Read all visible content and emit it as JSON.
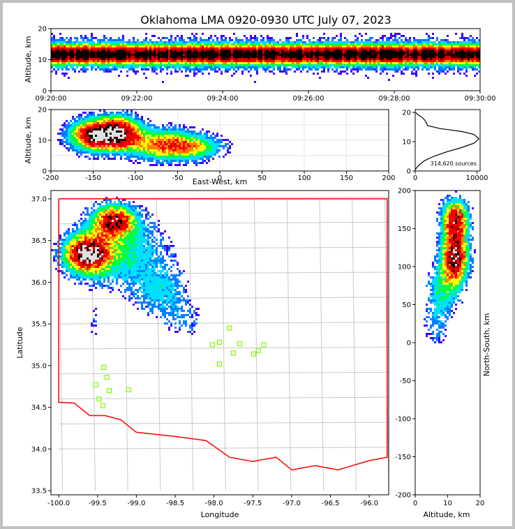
{
  "title": "Oklahoma LMA 0920-0930 UTC July 07, 2023",
  "chart_data": [
    {
      "id": "time-height",
      "type": "heatmap",
      "ylabel": "Altitude, km",
      "ylim": [
        0,
        20
      ],
      "yticks": [
        "0",
        "10",
        "20"
      ],
      "xticks": [
        "09:20:00",
        "09:22:00",
        "09:24:00",
        "09:26:00",
        "09:28:00",
        "09:30:00"
      ],
      "note": "source density vs. time and altitude; densest band near 10–14 km"
    },
    {
      "id": "ew-altitude",
      "type": "heatmap",
      "xlabel": "East-West, km",
      "ylabel": "Altitude, km",
      "xlim": [
        -200,
        200
      ],
      "ylim": [
        0,
        20
      ],
      "xticks": [
        "-200",
        "-150",
        "-100",
        "-50",
        "0",
        "50",
        "100",
        "150",
        "200"
      ],
      "yticks": [
        "0",
        "10",
        "20"
      ],
      "core_centers_km": [
        [
          -150,
          12
        ],
        [
          -120,
          13
        ],
        [
          -70,
          9
        ]
      ]
    },
    {
      "id": "altitude-histogram",
      "type": "line",
      "x": [
        0,
        200,
        600,
        1500,
        3000,
        5000,
        7500,
        9500,
        10300,
        9500,
        7500,
        4000,
        2000,
        1800,
        1500,
        1000,
        600,
        300,
        100
      ],
      "y": [
        0.5,
        1,
        2,
        3.5,
        5,
        6.5,
        8,
        9.5,
        11,
        12.5,
        13.5,
        14.5,
        15.5,
        16.5,
        17.5,
        18.5,
        19,
        19.5,
        20
      ],
      "xlim": [
        0,
        10500
      ],
      "ylim": [
        0,
        21
      ],
      "xticks": [
        "0",
        "10000"
      ],
      "yticks": [
        "0",
        "10",
        "20"
      ],
      "annotation": "314,620 sources"
    },
    {
      "id": "plan-view",
      "type": "heatmap",
      "xlabel": "Longitude",
      "ylabel": "Latitude",
      "xlim": [
        -100.1,
        -95.75
      ],
      "ylim": [
        33.45,
        37.1
      ],
      "xticks": [
        "-100.0",
        "-99.5",
        "-99.0",
        "-98.5",
        "-98.0",
        "-97.5",
        "-97.0",
        "-96.5",
        "-96.0"
      ],
      "yticks": [
        "33.5",
        "34.0",
        "34.5",
        "35.0",
        "35.5",
        "36.0",
        "36.5",
        "37.0"
      ],
      "stations": [
        [
          -99.42,
          34.98
        ],
        [
          -99.38,
          34.86
        ],
        [
          -99.52,
          34.77
        ],
        [
          -99.35,
          34.7
        ],
        [
          -99.48,
          34.6
        ],
        [
          -99.43,
          34.52
        ],
        [
          -99.1,
          34.71
        ],
        [
          -98.02,
          35.25
        ],
        [
          -97.93,
          35.28
        ],
        [
          -97.93,
          35.02
        ],
        [
          -97.8,
          35.45
        ],
        [
          -97.75,
          35.15
        ],
        [
          -97.67,
          35.26
        ],
        [
          -97.49,
          35.14
        ],
        [
          -97.43,
          35.18
        ],
        [
          -97.36,
          35.25
        ]
      ],
      "colors": {
        "border": "#ff0000",
        "counties": "#c8c8c8",
        "stations": "#7cfc00"
      }
    },
    {
      "id": "ns-altitude",
      "type": "heatmap",
      "xlabel": "Altitude, km",
      "ylabel": "North-South, km",
      "xlim": [
        0,
        20
      ],
      "ylim": [
        -200,
        200
      ],
      "xticks": [
        "0",
        "10",
        "20"
      ],
      "yticks": [
        "-200",
        "-150",
        "-100",
        "-50",
        "0",
        "50",
        "100",
        "150",
        "200"
      ]
    }
  ]
}
